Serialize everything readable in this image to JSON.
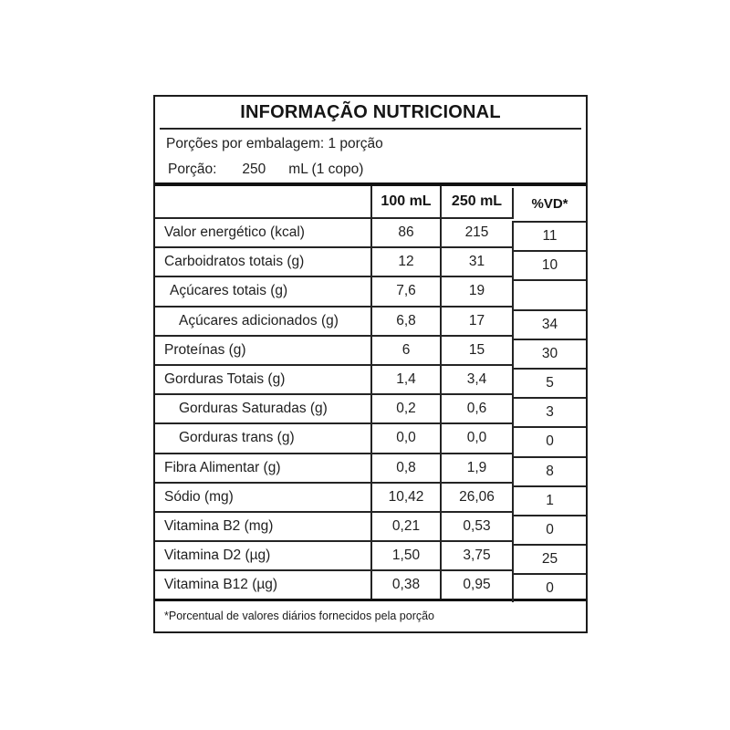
{
  "label": {
    "title": "INFORMAÇÃO NUTRICIONAL",
    "servings_line": "Porções por embalagem: 1 porção",
    "serving": {
      "label": "Porção:",
      "amount": "250",
      "unit": "mL (1 copo)"
    },
    "columns": [
      "100 mL",
      "250 mL",
      "%VD*"
    ],
    "rows": [
      {
        "name": "Valor energético (kcal)",
        "per100": "86",
        "per250": "215",
        "dv": "11"
      },
      {
        "name": "Carboidratos totais (g)",
        "per100": "12",
        "per250": "31",
        "dv": "10"
      },
      {
        "name": "Açúcares totais (g)",
        "per100": "7,6",
        "per250": "19",
        "dv": ""
      },
      {
        "name": "Açúcares adicionados (g)",
        "per100": "6,8",
        "per250": "17",
        "dv": "34"
      },
      {
        "name": "Proteínas (g)",
        "per100": "6",
        "per250": "15",
        "dv": "30"
      },
      {
        "name": "Gorduras Totais (g)",
        "per100": "1,4",
        "per250": "3,4",
        "dv": "5"
      },
      {
        "name": "Gorduras Saturadas (g)",
        "per100": "0,2",
        "per250": "0,6",
        "dv": "3"
      },
      {
        "name": "Gorduras trans (g)",
        "per100": "0,0",
        "per250": "0,0",
        "dv": "0"
      },
      {
        "name": "Fibra Alimentar (g)",
        "per100": "0,8",
        "per250": "1,9",
        "dv": "8"
      },
      {
        "name": "Sódio (mg)",
        "per100": "10,42",
        "per250": "26,06",
        "dv": "1"
      },
      {
        "name": "Vitamina B2 (mg)",
        "per100": "0,21",
        "per250": "0,53",
        "dv": "0"
      },
      {
        "name": "Vitamina D2 (µg)",
        "per100": "1,50",
        "per250": "3,75",
        "dv": "25"
      },
      {
        "name": "Vitamina B12 (µg)",
        "per100": "0,38",
        "per250": "0,95",
        "dv": "0"
      }
    ],
    "footnote": "*Porcentual de valores diários fornecidos pela porção",
    "colors": {
      "ink": "#1f1f1f",
      "line": "#1c1c1c",
      "background": "#ffffff"
    }
  }
}
